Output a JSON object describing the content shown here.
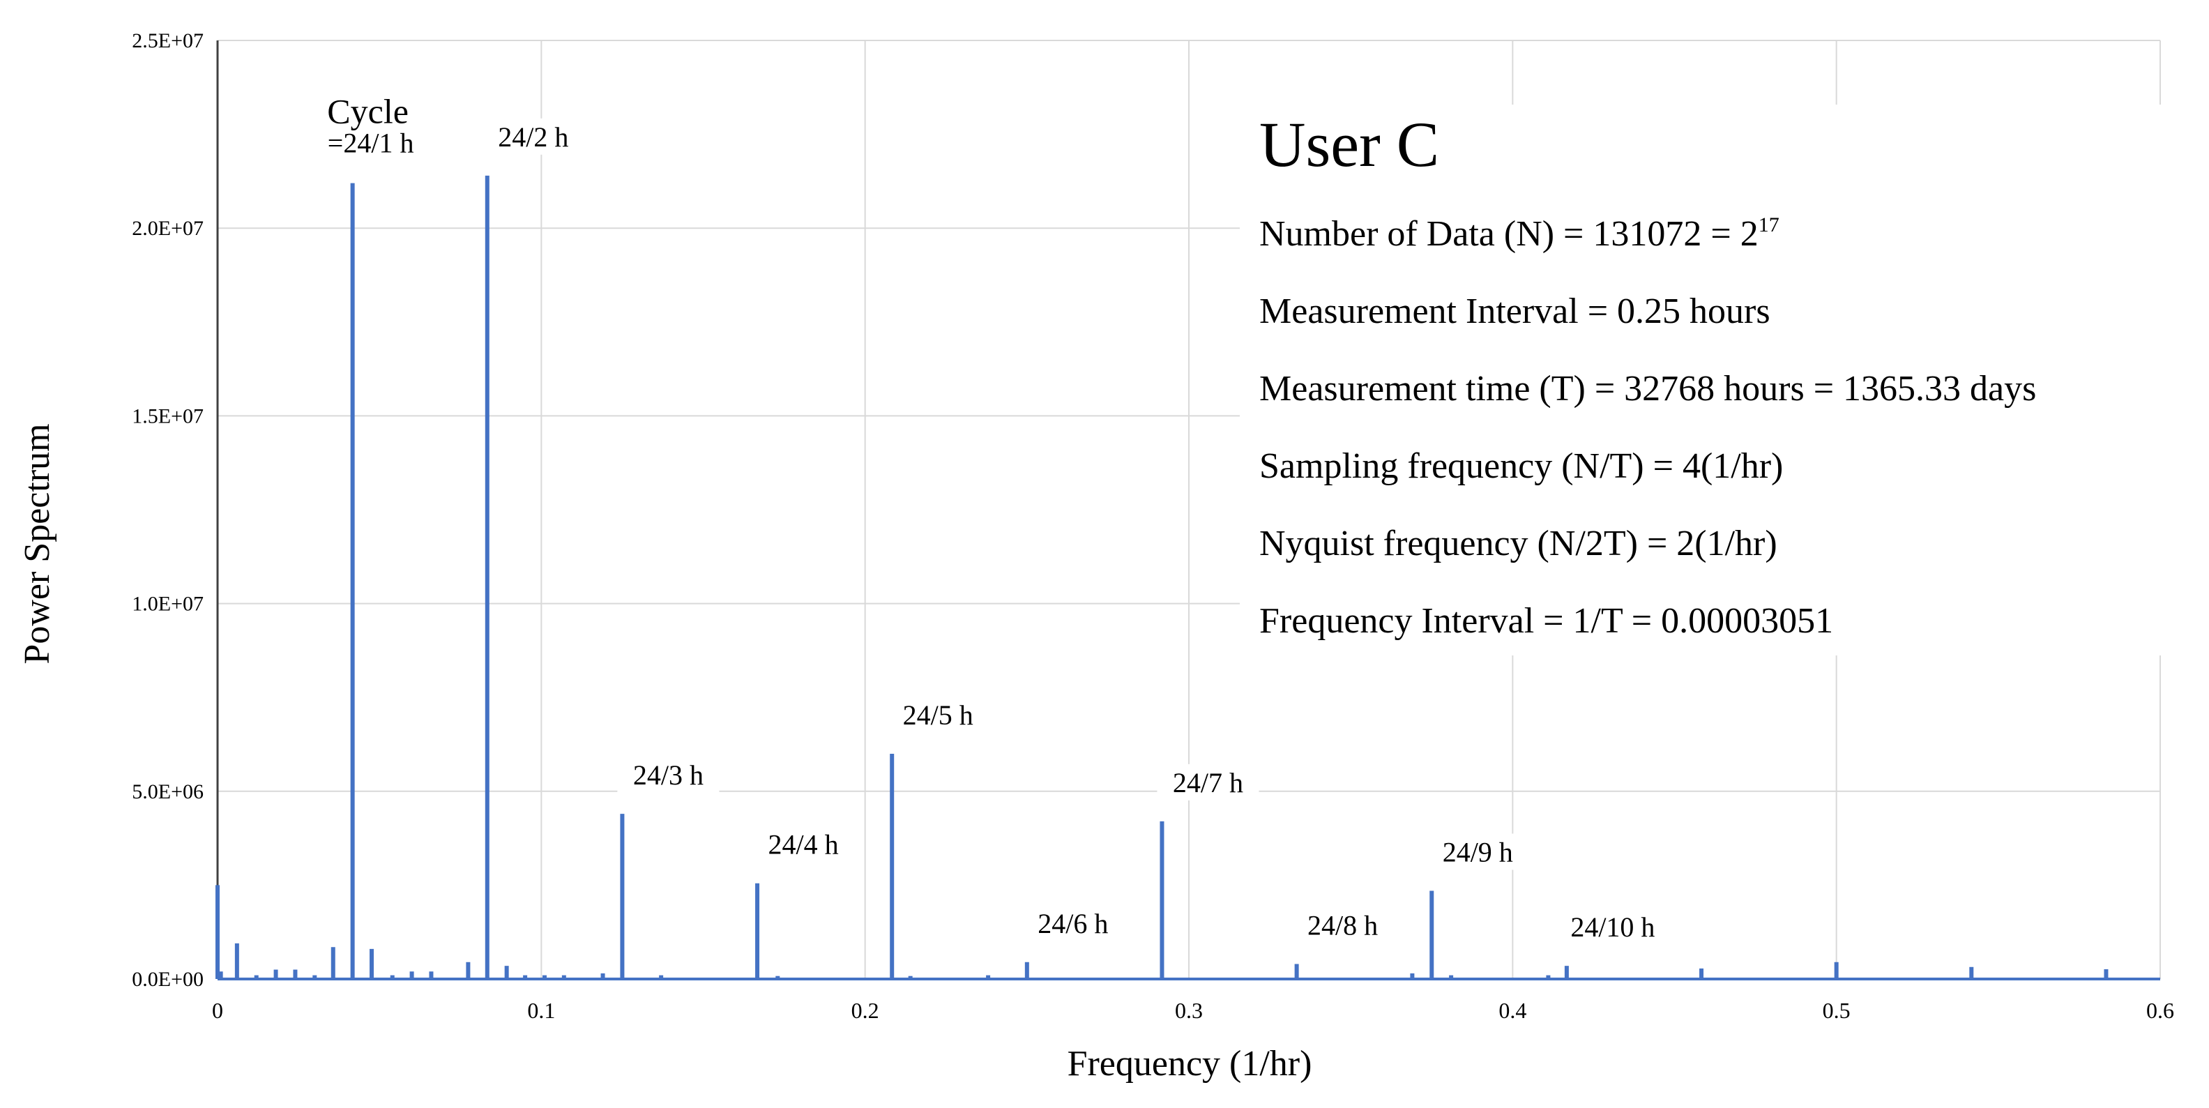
{
  "chart_data": {
    "type": "line",
    "title": "",
    "xlabel": "Frequency (1/hr)",
    "ylabel": "Power Spectrum",
    "xlim": [
      0,
      0.6
    ],
    "ylim": [
      0,
      25000000
    ],
    "grid": true,
    "x_ticks": [
      {
        "value": 0,
        "label": "0"
      },
      {
        "value": 0.1,
        "label": "0.1"
      },
      {
        "value": 0.2,
        "label": "0.2"
      },
      {
        "value": 0.3,
        "label": "0.3"
      },
      {
        "value": 0.4,
        "label": "0.4"
      },
      {
        "value": 0.5,
        "label": "0.5"
      },
      {
        "value": 0.6,
        "label": "0.6"
      }
    ],
    "y_ticks": [
      {
        "value": 0,
        "label": "0.0E+00"
      },
      {
        "value": 5000000,
        "label": "5.0E+06"
      },
      {
        "value": 10000000,
        "label": "1.0E+07"
      },
      {
        "value": 15000000,
        "label": "1.5E+07"
      },
      {
        "value": 20000000,
        "label": "2.0E+07"
      },
      {
        "value": 25000000,
        "label": "2.5E+07"
      }
    ],
    "series": [
      {
        "color": "#4472C4",
        "spikes": [
          {
            "x": 0.0,
            "y": 2500000
          },
          {
            "x": 0.001,
            "y": 200000
          },
          {
            "x": 0.006,
            "y": 950000
          },
          {
            "x": 0.012,
            "y": 100000
          },
          {
            "x": 0.018,
            "y": 250000
          },
          {
            "x": 0.024,
            "y": 250000
          },
          {
            "x": 0.03,
            "y": 100000
          },
          {
            "x": 0.0357,
            "y": 850000
          },
          {
            "x": 0.0417,
            "y": 21200000
          },
          {
            "x": 0.0476,
            "y": 800000
          },
          {
            "x": 0.054,
            "y": 100000
          },
          {
            "x": 0.06,
            "y": 200000
          },
          {
            "x": 0.066,
            "y": 200000
          },
          {
            "x": 0.0774,
            "y": 450000
          },
          {
            "x": 0.0833,
            "y": 21400000
          },
          {
            "x": 0.0893,
            "y": 350000
          },
          {
            "x": 0.095,
            "y": 100000
          },
          {
            "x": 0.101,
            "y": 100000
          },
          {
            "x": 0.107,
            "y": 100000
          },
          {
            "x": 0.119,
            "y": 150000
          },
          {
            "x": 0.125,
            "y": 4400000
          },
          {
            "x": 0.137,
            "y": 100000
          },
          {
            "x": 0.1667,
            "y": 2550000
          },
          {
            "x": 0.173,
            "y": 80000
          },
          {
            "x": 0.2083,
            "y": 6000000
          },
          {
            "x": 0.214,
            "y": 80000
          },
          {
            "x": 0.238,
            "y": 100000
          },
          {
            "x": 0.25,
            "y": 450000
          },
          {
            "x": 0.2917,
            "y": 4200000
          },
          {
            "x": 0.3333,
            "y": 400000
          },
          {
            "x": 0.369,
            "y": 150000
          },
          {
            "x": 0.375,
            "y": 2350000
          },
          {
            "x": 0.381,
            "y": 100000
          },
          {
            "x": 0.411,
            "y": 100000
          },
          {
            "x": 0.4167,
            "y": 350000
          },
          {
            "x": 0.4583,
            "y": 280000
          },
          {
            "x": 0.5,
            "y": 450000
          },
          {
            "x": 0.5417,
            "y": 320000
          },
          {
            "x": 0.5833,
            "y": 260000
          }
        ]
      }
    ],
    "annotations": [
      {
        "x": 0.0417,
        "y": 21200000,
        "text": "=24/1 h",
        "heading": "Cycle"
      },
      {
        "x": 0.0833,
        "y": 21400000,
        "text": "24/2 h"
      },
      {
        "x": 0.125,
        "y": 4400000,
        "text": "24/3 h"
      },
      {
        "x": 0.1667,
        "y": 2550000,
        "text": "24/4 h"
      },
      {
        "x": 0.2083,
        "y": 6000000,
        "text": "24/5 h"
      },
      {
        "x": 0.25,
        "y": 450000,
        "text": "24/6 h"
      },
      {
        "x": 0.2917,
        "y": 4200000,
        "text": "24/7 h"
      },
      {
        "x": 0.3333,
        "y": 400000,
        "text": "24/8 h"
      },
      {
        "x": 0.375,
        "y": 2350000,
        "text": "24/9 h"
      },
      {
        "x": 0.4167,
        "y": 350000,
        "text": "24/10 h"
      }
    ]
  },
  "info": {
    "title": "User C",
    "line1_main": "Number of Data (N) = 131072 = 2",
    "line1_sup": "17",
    "line2": "Measurement Interval = 0.25 hours",
    "line3": "Measurement time (T) = 32768 hours = 1365.33 days",
    "line4": "Sampling frequency (N/T) = 4(1/hr)",
    "line5": "Nyquist frequency (N/2T) = 2(1/hr)",
    "line6": "Frequency Interval = 1/T = 0.00003051"
  }
}
